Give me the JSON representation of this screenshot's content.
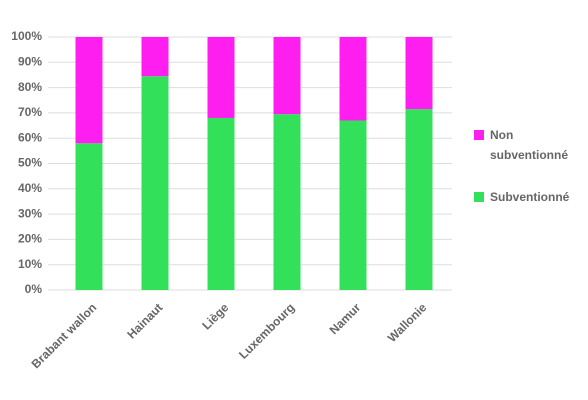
{
  "chart_data": {
    "type": "stacked_bar",
    "categories": [
      "Brabant wallon",
      "Hainaut",
      "Liège",
      "Luxembourg",
      "Namur",
      "Wallonie"
    ],
    "series": [
      {
        "name": "Subventionné",
        "color": "#33e05a",
        "values": [
          58,
          84.5,
          68,
          69.5,
          67,
          71.5
        ]
      },
      {
        "name": "Non subventionné",
        "color": "#ff1ef0",
        "values": [
          42,
          15.5,
          32,
          30.5,
          33,
          28.5
        ]
      }
    ],
    "ylim": [
      0,
      100
    ],
    "yticks": [
      {
        "value": 0,
        "label": "0%"
      },
      {
        "value": 10,
        "label": "10%"
      },
      {
        "value": 20,
        "label": "20%"
      },
      {
        "value": 30,
        "label": "30%"
      },
      {
        "value": 40,
        "label": "40%"
      },
      {
        "value": 50,
        "label": "50%"
      },
      {
        "value": 60,
        "label": "60%"
      },
      {
        "value": 70,
        "label": "70%"
      },
      {
        "value": 80,
        "label": "80%"
      },
      {
        "value": 90,
        "label": "90%"
      },
      {
        "value": 100,
        "label": "100%"
      }
    ],
    "grid": true,
    "legend": "right"
  }
}
